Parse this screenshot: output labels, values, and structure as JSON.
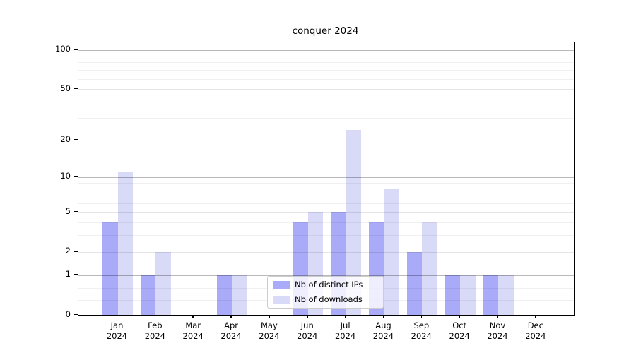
{
  "chart_data": {
    "type": "bar",
    "title": "conquer 2024",
    "categories": [
      "Jan",
      "Feb",
      "Mar",
      "Apr",
      "May",
      "Jun",
      "Jul",
      "Aug",
      "Sep",
      "Oct",
      "Nov",
      "Dec"
    ],
    "category_year": "2024",
    "series": [
      {
        "name": "Nb of distinct IPs",
        "color": "#a9aaf8",
        "values": [
          4,
          1,
          0,
          1,
          0,
          4,
          5,
          4,
          2,
          1,
          1,
          0
        ]
      },
      {
        "name": "Nb of downloads",
        "color": "#d9daf8",
        "values": [
          11,
          2,
          0,
          1,
          0,
          5,
          24,
          8,
          4,
          1,
          1,
          0
        ]
      }
    ],
    "yscale": "log1p",
    "ylim": [
      0,
      100
    ],
    "ytick_values": [
      0,
      1,
      2,
      5,
      10,
      20,
      50,
      100
    ],
    "grid": true,
    "major_grid_values": [
      1,
      10,
      100
    ],
    "medium_grid_values": [
      2,
      5,
      20,
      50
    ],
    "minor_grid_values": [
      0.3,
      0.6,
      3,
      4,
      6,
      7,
      8,
      9,
      30,
      40,
      60,
      70,
      80,
      90
    ],
    "legend_position": "inside-bottom-center",
    "background_color": "#ffffff",
    "spine_color": "#000000"
  }
}
